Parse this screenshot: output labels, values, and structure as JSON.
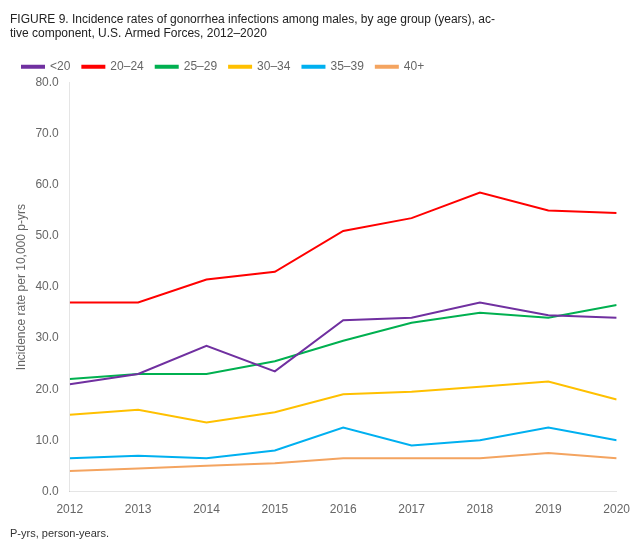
{
  "chart_data": {
    "type": "line",
    "title": [
      "FIGURE 9. Incidence rates of gonorrhea infections among males, by age group (years), ac-",
      "tive component, U.S. Armed Forces, 2012–2020"
    ],
    "annotations": [
      "P-yrs, person-years."
    ],
    "y_label": "Incidence rate per 10,000 p-yrs",
    "x": [
      2012,
      2013,
      2014,
      2015,
      2016,
      2017,
      2018,
      2019,
      2020
    ],
    "series": [
      {
        "name": "<20",
        "color": "#7030a0",
        "values": [
          21.0,
          23.0,
          28.5,
          23.5,
          33.5,
          34.0,
          37.0,
          34.5,
          34.0
        ]
      },
      {
        "name": "20–24",
        "color": "#ff0000",
        "values": [
          37.0,
          37.0,
          41.5,
          43.0,
          51.0,
          53.5,
          58.5,
          55.0,
          54.5
        ]
      },
      {
        "name": "25–29",
        "color": "#00b050",
        "values": [
          22.0,
          23.0,
          23.0,
          25.5,
          29.5,
          33.0,
          35.0,
          34.0,
          36.5
        ]
      },
      {
        "name": "30–34",
        "color": "#ffc000",
        "values": [
          15.0,
          16.0,
          13.5,
          15.5,
          19.0,
          19.5,
          20.5,
          21.5,
          18.0
        ]
      },
      {
        "name": "35–39",
        "color": "#00b0f0",
        "values": [
          6.5,
          7.0,
          6.5,
          8.0,
          12.5,
          9.0,
          10.0,
          12.5,
          10.0
        ]
      },
      {
        "name": "40+",
        "color": "#f4a460",
        "values": [
          4.0,
          4.5,
          5.0,
          5.5,
          6.5,
          6.5,
          6.5,
          7.5,
          6.5
        ]
      }
    ],
    "xlim": [
      2012,
      2020
    ],
    "xticks": [
      2012,
      2013,
      2014,
      2015,
      2016,
      2017,
      2018,
      2019,
      2020
    ],
    "ylim": [
      0,
      80
    ],
    "yticks": [
      {
        "value": 0,
        "label": "0.0"
      },
      {
        "value": 10,
        "label": "10.0"
      },
      {
        "value": 20,
        "label": "20.0"
      },
      {
        "value": 30,
        "label": "30.0"
      },
      {
        "value": 40,
        "label": "40.0"
      },
      {
        "value": 50,
        "label": "50.0"
      },
      {
        "value": 60,
        "label": "60.0"
      },
      {
        "value": 70,
        "label": "70.0"
      },
      {
        "value": 80,
        "label": "80.0"
      }
    ],
    "grid": false,
    "legend": "upper left"
  }
}
